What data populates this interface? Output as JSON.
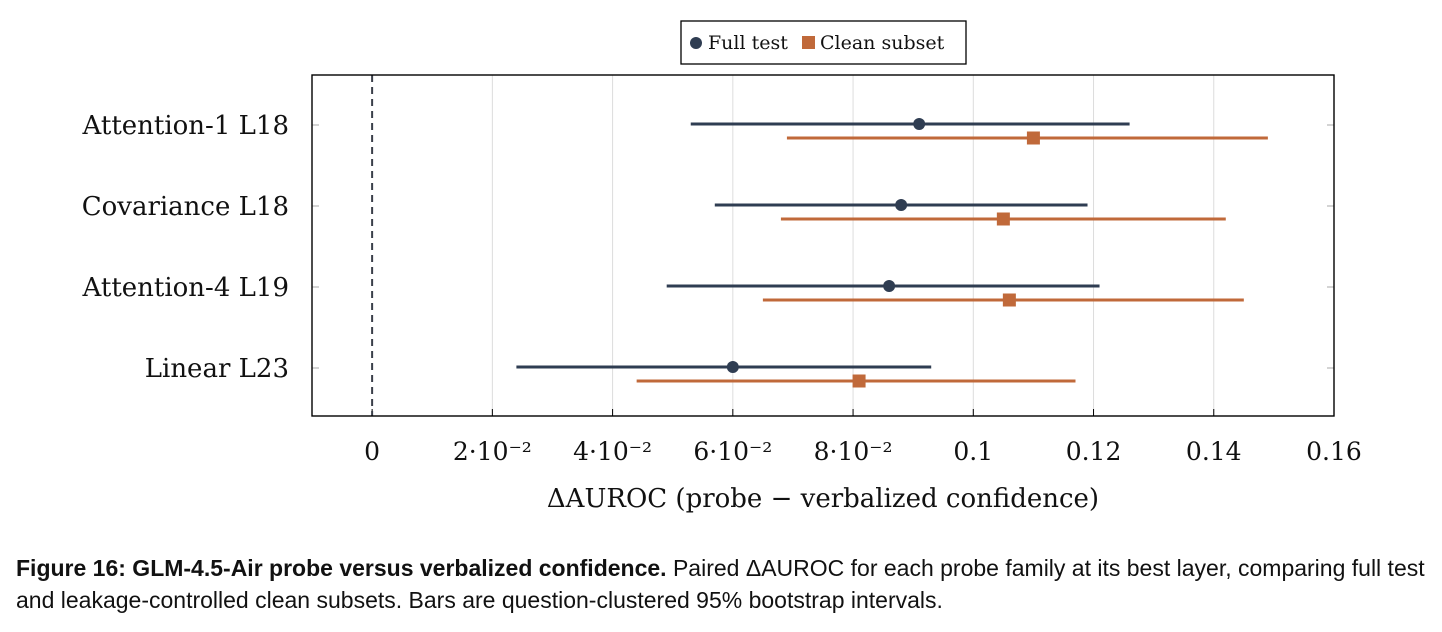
{
  "chart_data": {
    "type": "scatter",
    "xlabel": "ΔAUROC (probe − verbalized confidence)",
    "xlim": [
      -0.01,
      0.16
    ],
    "xticks": [
      0,
      0.02,
      0.04,
      0.06,
      0.08,
      0.1,
      0.12,
      0.14,
      0.16
    ],
    "xtick_labels": [
      "0",
      "2·10⁻²",
      "4·10⁻²",
      "6·10⁻²",
      "8·10⁻²",
      "0.1",
      "0.12",
      "0.14",
      "0.16"
    ],
    "reference_line": 0,
    "grid": "vertical",
    "legend_position": "top-center",
    "categories": [
      "Attention-1 L18",
      "Covariance L18",
      "Attention-4 L19",
      "Linear L23"
    ],
    "series": [
      {
        "name": "Full test",
        "marker": "circle",
        "color": "#2f3d52",
        "values": [
          0.091,
          0.088,
          0.086,
          0.06
        ],
        "ci_low": [
          0.053,
          0.057,
          0.049,
          0.024
        ],
        "ci_high": [
          0.126,
          0.119,
          0.121,
          0.093
        ]
      },
      {
        "name": "Clean subset",
        "marker": "square",
        "color": "#c0693a",
        "values": [
          0.11,
          0.105,
          0.106,
          0.081
        ],
        "ci_low": [
          0.069,
          0.068,
          0.065,
          0.044
        ],
        "ci_high": [
          0.149,
          0.142,
          0.145,
          0.117
        ]
      }
    ]
  },
  "caption": {
    "label": "Figure 16: GLM-4.5-Air probe versus verbalized confidence.",
    "text": " Paired ΔAUROC for each probe family at its best layer, comparing full test and leakage-controlled clean subsets. Bars are question-clustered 95% bootstrap intervals."
  }
}
